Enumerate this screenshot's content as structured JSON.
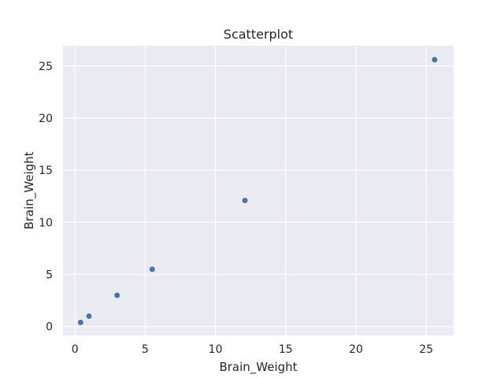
{
  "chart_data": {
    "type": "scatter",
    "title": "Scatterplot",
    "xlabel": "Brain_Weight",
    "ylabel": "Brain_Weight",
    "xlim": [
      -0.85,
      26.95
    ],
    "ylim": [
      -0.85,
      26.95
    ],
    "xticks": [
      0,
      5,
      10,
      15,
      20,
      25
    ],
    "yticks": [
      0,
      5,
      10,
      15,
      20,
      25
    ],
    "grid": true,
    "background": "#EAEAF2",
    "grid_color": "#FFFFFF",
    "point_color": "#4C72B0",
    "series": [
      {
        "x": [
          0.4,
          1.0,
          3.0,
          5.5,
          12.1,
          25.6
        ],
        "y": [
          0.4,
          1.0,
          3.0,
          5.5,
          12.1,
          25.6
        ]
      }
    ]
  }
}
